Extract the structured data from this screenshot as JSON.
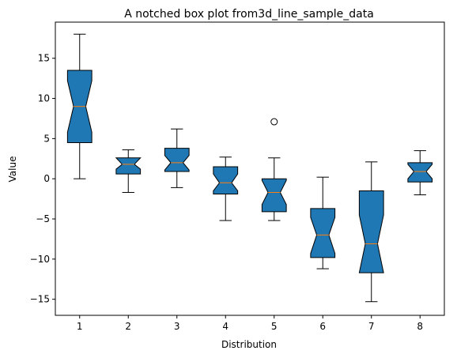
{
  "chart_data": {
    "type": "box",
    "notched": true,
    "title": "A notched box plot from3d_line_sample_data",
    "xlabel": "Distribution",
    "ylabel": "Value",
    "categories": [
      "1",
      "2",
      "3",
      "4",
      "5",
      "6",
      "7",
      "8"
    ],
    "ylim": [
      -17,
      19.5
    ],
    "yticks": [
      -15,
      -10,
      -5,
      0,
      5,
      10,
      15
    ],
    "box_color": "#1f77b4",
    "median_color": "#ff7f0e",
    "grid": false,
    "boxes": [
      {
        "label": "1",
        "whisker_low": 0.0,
        "q1": 4.5,
        "median": 9.0,
        "q3": 13.5,
        "whisker_high": 18.0,
        "notch_low": 5.8,
        "notch_high": 12.2,
        "outliers": []
      },
      {
        "label": "2",
        "whisker_low": -1.7,
        "q1": 0.6,
        "median": 1.8,
        "q3": 2.6,
        "whisker_high": 3.6,
        "notch_low": 1.2,
        "notch_high": 2.6,
        "outliers": []
      },
      {
        "label": "3",
        "whisker_low": -1.1,
        "q1": 0.9,
        "median": 2.0,
        "q3": 3.8,
        "whisker_high": 6.2,
        "notch_low": 1.1,
        "notch_high": 2.9,
        "outliers": []
      },
      {
        "label": "4",
        "whisker_low": -5.2,
        "q1": -1.9,
        "median": -0.5,
        "q3": 1.5,
        "whisker_high": 2.7,
        "notch_low": -1.5,
        "notch_high": 0.6,
        "outliers": []
      },
      {
        "label": "5",
        "whisker_low": -5.2,
        "q1": -4.1,
        "median": -1.7,
        "q3": 0.0,
        "whisker_high": 2.6,
        "notch_low": -3.2,
        "notch_high": -0.2,
        "outliers": [
          7.1
        ]
      },
      {
        "label": "6",
        "whisker_low": -11.2,
        "q1": -9.8,
        "median": -7.0,
        "q3": -3.7,
        "whisker_high": 0.2,
        "notch_low": -9.3,
        "notch_high": -4.8,
        "outliers": []
      },
      {
        "label": "7",
        "whisker_low": -15.3,
        "q1": -11.7,
        "median": -8.1,
        "q3": -1.5,
        "whisker_high": 2.1,
        "notch_low": -11.7,
        "notch_high": -4.5,
        "outliers": []
      },
      {
        "label": "8",
        "whisker_low": -2.0,
        "q1": -0.4,
        "median": 0.9,
        "q3": 2.0,
        "whisker_high": 3.5,
        "notch_low": 0.0,
        "notch_high": 1.8,
        "outliers": []
      }
    ]
  }
}
